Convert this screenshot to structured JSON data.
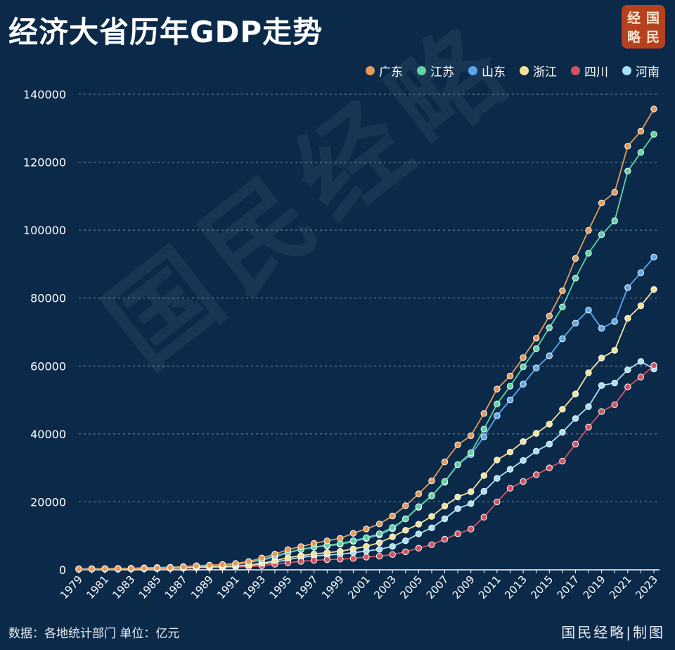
{
  "header": {
    "title": "经济大省历年GDP走势",
    "logo_chars": [
      "经",
      "国",
      "略",
      "民"
    ]
  },
  "watermark": "国民经略",
  "footer": {
    "source": "数据：各地统计部门 单位：亿元",
    "credit": "国民经略|制图"
  },
  "colors": {
    "background": "#0b2a4a",
    "广东": "#e69a5a",
    "江苏": "#5fd3a1",
    "山东": "#5aa7ec",
    "浙江": "#f3e29a",
    "四川": "#d2535f",
    "河南": "#a8e0f5"
  },
  "chart_data": {
    "type": "line",
    "title": "经济大省历年GDP走势",
    "xlabel": "",
    "ylabel": "",
    "ylim": [
      0,
      140000
    ],
    "yticks": [
      0,
      20000,
      40000,
      60000,
      80000,
      100000,
      120000,
      140000
    ],
    "xtick_labels": [
      "1979",
      "1981",
      "1983",
      "1985",
      "1987",
      "1989",
      "1991",
      "1993",
      "1995",
      "1997",
      "1999",
      "2001",
      "2003",
      "2005",
      "2007",
      "2009",
      "2011",
      "2013",
      "2015",
      "2017",
      "2019",
      "2021",
      "2023"
    ],
    "grid": true,
    "legend_position": "top-right",
    "x": [
      1979,
      1980,
      1981,
      1982,
      1983,
      1984,
      1985,
      1986,
      1987,
      1988,
      1989,
      1990,
      1991,
      1992,
      1993,
      1994,
      1995,
      1996,
      1997,
      1998,
      1999,
      2000,
      2001,
      2002,
      2003,
      2004,
      2005,
      2006,
      2007,
      2008,
      2009,
      2010,
      2011,
      2012,
      2013,
      2014,
      2015,
      2016,
      2017,
      2018,
      2019,
      2020,
      2021,
      2022,
      2023
    ],
    "series": [
      {
        "name": "广东",
        "values": [
          209,
          250,
          290,
          340,
          368,
          458,
          577,
          667,
          847,
          1155,
          1381,
          1559,
          1893,
          2447,
          3469,
          4619,
          5934,
          6835,
          7774,
          8531,
          9251,
          10741,
          12039,
          13502,
          15845,
          18865,
          22367,
          26204,
          31777,
          36797,
          39483,
          46013,
          53210,
          57068,
          62475,
          68173,
          74732,
          82164,
          91649,
          99945,
          107987,
          111152,
          124719,
          129119,
          135673
        ]
      },
      {
        "name": "江苏",
        "values": [
          298,
          320,
          350,
          390,
          438,
          518,
          652,
          744,
          922,
          1208,
          1322,
          1417,
          1601,
          2136,
          2998,
          4057,
          5155,
          6004,
          6680,
          7200,
          7698,
          8554,
          9457,
          10631,
          12461,
          15004,
          18599,
          21742,
          26018,
          30982,
          34457,
          41425,
          48839,
          54058,
          59753,
          65088,
          71255,
          77388,
          85870,
          93208,
          98657,
          102719,
          117392,
          122876,
          128222
        ]
      },
      {
        "name": "山东",
        "values": [
          225,
          292,
          346,
          395,
          459,
          581,
          681,
          742,
          892,
          1118,
          1293,
          1511,
          1810,
          2197,
          2779,
          3844,
          5002,
          5960,
          6650,
          7021,
          7493,
          8337,
          9195,
          10275,
          12078,
          15021,
          18366,
          21900,
          25776,
          30933,
          33896,
          39170,
          45362,
          50013,
          54684,
          59427,
          63002,
          68024,
          72634,
          76470,
          71068,
          73129,
          83096,
          87435,
          92069
        ]
      },
      {
        "name": "浙江",
        "values": [
          157,
          180,
          204,
          234,
          257,
          323,
          429,
          502,
          606,
          770,
          850,
          905,
          1089,
          1376,
          1926,
          2689,
          3558,
          4189,
          4686,
          5052,
          5444,
          6141,
          6898,
          8004,
          9705,
          11649,
          13418,
          15718,
          18754,
          21463,
          22990,
          27722,
          32319,
          34665,
          37757,
          40173,
          42886,
          47251,
          51768,
          58003,
          62352,
          64613,
          74041,
          77715,
          82553
        ]
      },
      {
        "name": "四川",
        "values": [
          150,
          179,
          200,
          228,
          256,
          295,
          353,
          400,
          462,
          570,
          632,
          730,
          817,
          958,
          1176,
          1630,
          2100,
          2480,
          2800,
          3000,
          3150,
          3350,
          3750,
          4000,
          4500,
          5300,
          6386,
          7388,
          9000,
          10600,
          12000,
          15500,
          20000,
          24000,
          26000,
          28000,
          30000,
          32000,
          37000,
          42000,
          46616,
          48599,
          53850,
          56750,
          60133
        ]
      },
      {
        "name": "河南",
        "values": [
          190,
          229,
          249,
          263,
          327,
          370,
          451,
          502,
          609,
          749,
          851,
          935,
          1045,
          1279,
          1660,
          2216,
          2988,
          3661,
          4079,
          4356,
          4576,
          5053,
          5533,
          6035,
          6868,
          8554,
          10587,
          12362,
          15012,
          18018,
          19480,
          23092,
          26931,
          29599,
          32191,
          34938,
          37002,
          40472,
          44553,
          48056,
          54259,
          54997,
          58887,
          61345,
          59132
        ]
      }
    ]
  }
}
